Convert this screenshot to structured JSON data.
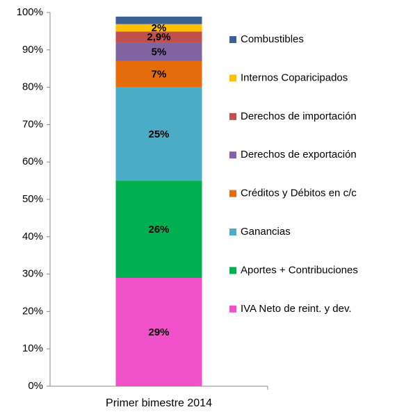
{
  "chart_data": {
    "type": "stacked-bar",
    "categories": [
      "Primer bimestre 2014"
    ],
    "series": [
      {
        "name": "IVA Neto de reint. y dev.",
        "color": "#f050c8",
        "values": [
          29
        ],
        "value_labels": [
          "29%"
        ]
      },
      {
        "name": "Aportes + Contribuciones",
        "color": "#00b050",
        "values": [
          26
        ],
        "value_labels": [
          "26%"
        ]
      },
      {
        "name": "Ganancias",
        "color": "#4bacc6",
        "values": [
          25
        ],
        "value_labels": [
          "25%"
        ]
      },
      {
        "name": "Créditos y Débitos en c/c",
        "color": "#e46c0a",
        "values": [
          7
        ],
        "value_labels": [
          "7%"
        ]
      },
      {
        "name": "Derechos de exportación",
        "color": "#8064a2",
        "values": [
          5
        ],
        "value_labels": [
          "5%"
        ]
      },
      {
        "name": "Derechos de importación",
        "color": "#c0504d",
        "values": [
          2.9
        ],
        "value_labels": [
          "2,9%"
        ]
      },
      {
        "name": "Internos Coparicipados",
        "color": "#ffc000",
        "values": [
          2
        ],
        "value_labels": [
          "2%"
        ]
      },
      {
        "name": "Combustibles",
        "color": "#3c5f96",
        "values": [
          2
        ],
        "value_labels": [
          null
        ]
      }
    ],
    "ylim": [
      0,
      100
    ],
    "yticks": [
      {
        "value": 0,
        "label": "0%"
      },
      {
        "value": 10,
        "label": "10%"
      },
      {
        "value": 20,
        "label": "20%"
      },
      {
        "value": 30,
        "label": "30%"
      },
      {
        "value": 40,
        "label": "40%"
      },
      {
        "value": 50,
        "label": "50%"
      },
      {
        "value": 60,
        "label": "60%"
      },
      {
        "value": 70,
        "label": "70%"
      },
      {
        "value": 80,
        "label": "80%"
      },
      {
        "value": 90,
        "label": "90%"
      },
      {
        "value": 100,
        "label": "100%"
      }
    ],
    "grid": false,
    "legend": "right"
  }
}
